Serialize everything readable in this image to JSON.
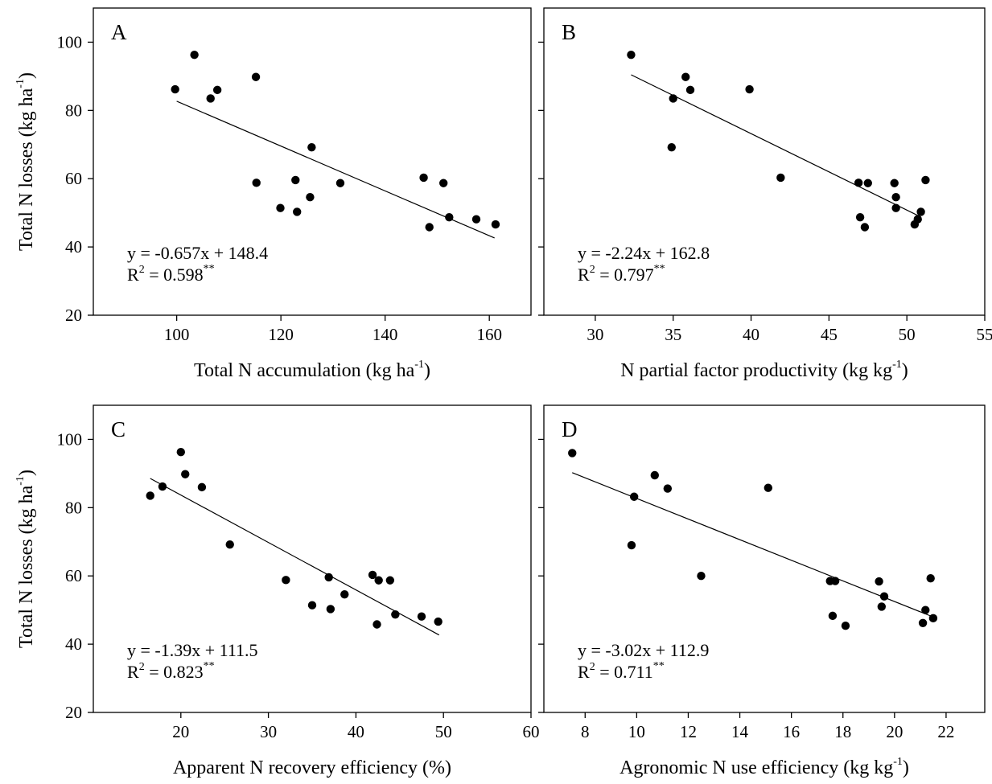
{
  "figure": {
    "ylabel": "Total N losses (kg ha",
    "ylabel_sup": "-1",
    "ylabel_close": ")"
  },
  "chart_data": [
    {
      "type": "scatter",
      "panel": "A",
      "xlabel": "Total N accumulation (kg ha",
      "xlabel_sup": "-1",
      "xlabel_close": ")",
      "show_ylabel": true,
      "show_y_tick_labels": true,
      "xlim": [
        84,
        168
      ],
      "ylim": [
        20,
        110
      ],
      "xticks": [
        100,
        120,
        140,
        160
      ],
      "yticks": [
        20,
        40,
        60,
        80,
        100
      ],
      "equation": "y = -0.657x + 148.4",
      "r2_label": "R",
      "r2_value": " = 0.598",
      "r2_sig": "**",
      "fit": {
        "slope": -0.657,
        "intercept": 148.4,
        "x_range": [
          100,
          161
        ]
      },
      "points": [
        {
          "x": 99.7,
          "y": 86.2
        },
        {
          "x": 103.4,
          "y": 96.3
        },
        {
          "x": 106.5,
          "y": 83.5
        },
        {
          "x": 107.8,
          "y": 86.0
        },
        {
          "x": 115.2,
          "y": 89.8
        },
        {
          "x": 115.3,
          "y": 58.8
        },
        {
          "x": 119.9,
          "y": 51.4
        },
        {
          "x": 122.8,
          "y": 59.6
        },
        {
          "x": 123.1,
          "y": 50.3
        },
        {
          "x": 125.6,
          "y": 54.6
        },
        {
          "x": 125.9,
          "y": 69.2
        },
        {
          "x": 131.4,
          "y": 58.7
        },
        {
          "x": 147.4,
          "y": 60.3
        },
        {
          "x": 148.5,
          "y": 45.8
        },
        {
          "x": 151.2,
          "y": 58.7
        },
        {
          "x": 152.3,
          "y": 48.7
        },
        {
          "x": 157.5,
          "y": 48.1
        },
        {
          "x": 161.2,
          "y": 46.6
        }
      ]
    },
    {
      "type": "scatter",
      "panel": "B",
      "xlabel": "N partial factor productivity (kg kg",
      "xlabel_sup": "-1",
      "xlabel_close": ")",
      "show_ylabel": false,
      "show_y_tick_labels": false,
      "xlim": [
        26.7,
        55
      ],
      "ylim": [
        20,
        110
      ],
      "xticks": [
        30,
        35,
        40,
        45,
        50,
        55
      ],
      "yticks": [
        20,
        40,
        60,
        80,
        100
      ],
      "equation": "y = -2.24x + 162.8",
      "r2_label": "R",
      "r2_value": " = 0.797",
      "r2_sig": "**",
      "fit": {
        "slope": -2.24,
        "intercept": 162.8,
        "x_range": [
          32.3,
          50.9
        ]
      },
      "points": [
        {
          "x": 32.3,
          "y": 96.3
        },
        {
          "x": 34.9,
          "y": 69.2
        },
        {
          "x": 35.0,
          "y": 83.5
        },
        {
          "x": 35.8,
          "y": 89.8
        },
        {
          "x": 36.1,
          "y": 86.0
        },
        {
          "x": 39.9,
          "y": 86.2
        },
        {
          "x": 41.9,
          "y": 60.3
        },
        {
          "x": 46.9,
          "y": 58.8
        },
        {
          "x": 47.0,
          "y": 48.7
        },
        {
          "x": 47.3,
          "y": 45.8
        },
        {
          "x": 47.5,
          "y": 58.7
        },
        {
          "x": 49.2,
          "y": 58.7
        },
        {
          "x": 49.3,
          "y": 54.6
        },
        {
          "x": 49.3,
          "y": 51.4
        },
        {
          "x": 50.5,
          "y": 46.6
        },
        {
          "x": 50.7,
          "y": 48.1
        },
        {
          "x": 50.9,
          "y": 50.3
        },
        {
          "x": 51.2,
          "y": 59.6
        }
      ]
    },
    {
      "type": "scatter",
      "panel": "C",
      "xlabel": "Apparent N recovery efficiency (%)",
      "xlabel_sup": "",
      "xlabel_close": "",
      "show_ylabel": true,
      "show_y_tick_labels": true,
      "xlim": [
        10,
        60
      ],
      "ylim": [
        20,
        110
      ],
      "xticks": [
        20,
        30,
        40,
        50,
        60
      ],
      "yticks": [
        20,
        40,
        60,
        80,
        100
      ],
      "equation": "y = -1.39x + 111.5",
      "r2_label": "R",
      "r2_value": " = 0.823",
      "r2_sig": "**",
      "fit": {
        "slope": -1.39,
        "intercept": 111.5,
        "x_range": [
          16.5,
          49.5
        ]
      },
      "points": [
        {
          "x": 16.5,
          "y": 83.5
        },
        {
          "x": 17.9,
          "y": 86.2
        },
        {
          "x": 20.0,
          "y": 96.3
        },
        {
          "x": 20.5,
          "y": 89.8
        },
        {
          "x": 22.4,
          "y": 86.0
        },
        {
          "x": 25.6,
          "y": 69.2
        },
        {
          "x": 32.0,
          "y": 58.8
        },
        {
          "x": 35.0,
          "y": 51.4
        },
        {
          "x": 36.9,
          "y": 59.6
        },
        {
          "x": 37.1,
          "y": 50.3
        },
        {
          "x": 38.7,
          "y": 54.6
        },
        {
          "x": 41.9,
          "y": 60.3
        },
        {
          "x": 42.4,
          "y": 45.8
        },
        {
          "x": 42.6,
          "y": 58.7
        },
        {
          "x": 43.9,
          "y": 58.7
        },
        {
          "x": 44.5,
          "y": 48.7
        },
        {
          "x": 47.5,
          "y": 48.1
        },
        {
          "x": 49.4,
          "y": 46.6
        }
      ]
    },
    {
      "type": "scatter",
      "panel": "D",
      "xlabel": "Agronomic N use efficiency (kg kg",
      "xlabel_sup": "-1",
      "xlabel_close": ")",
      "show_ylabel": false,
      "show_y_tick_labels": false,
      "xlim": [
        6.4,
        23.5
      ],
      "ylim": [
        20,
        110
      ],
      "xticks": [
        8,
        10,
        12,
        14,
        16,
        18,
        20,
        22
      ],
      "yticks": [
        20,
        40,
        60,
        80,
        100
      ],
      "equation": "y = -3.02x + 112.9",
      "r2_label": "R",
      "r2_value": " = 0.711",
      "r2_sig": "**",
      "fit": {
        "slope": -3.02,
        "intercept": 112.9,
        "x_range": [
          7.5,
          21.4
        ]
      },
      "points": [
        {
          "x": 7.5,
          "y": 96.0
        },
        {
          "x": 9.8,
          "y": 69.0
        },
        {
          "x": 9.9,
          "y": 83.2
        },
        {
          "x": 10.7,
          "y": 89.5
        },
        {
          "x": 11.2,
          "y": 85.6
        },
        {
          "x": 12.5,
          "y": 60.0
        },
        {
          "x": 15.1,
          "y": 85.8
        },
        {
          "x": 17.5,
          "y": 58.5
        },
        {
          "x": 17.6,
          "y": 48.3
        },
        {
          "x": 17.7,
          "y": 58.5
        },
        {
          "x": 18.1,
          "y": 45.4
        },
        {
          "x": 19.4,
          "y": 58.4
        },
        {
          "x": 19.5,
          "y": 51.0
        },
        {
          "x": 19.6,
          "y": 54.0
        },
        {
          "x": 21.1,
          "y": 46.2
        },
        {
          "x": 21.2,
          "y": 50.0
        },
        {
          "x": 21.4,
          "y": 59.3
        },
        {
          "x": 21.5,
          "y": 47.6
        }
      ]
    }
  ]
}
